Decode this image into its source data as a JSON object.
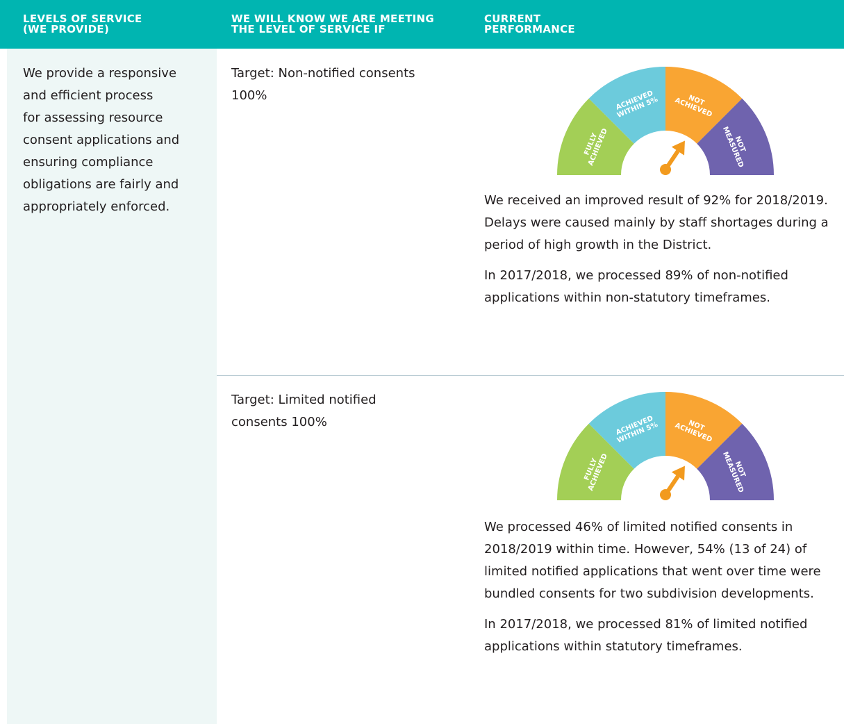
{
  "header": {
    "columns": [
      [
        "LEVELS OF SERVICE",
        "(WE PROVIDE)"
      ],
      [
        "WE WILL KNOW WE ARE MEETING",
        "THE LEVEL OF SERVICE IF"
      ],
      [
        "CURRENT",
        "PERFORMANCE"
      ]
    ]
  },
  "level_of_service": [
    "We provide a responsive",
    "and efficient process",
    "for assessing resource",
    "consent applications and",
    "ensuring compliance",
    "obligations are fairly and",
    "appropriately enforced."
  ],
  "gauge_labels": [
    [
      "FULLY",
      "ACHIEVED"
    ],
    [
      "ACHIEVED",
      "WITHIN 5%"
    ],
    [
      "NOT",
      "ACHIEVED"
    ],
    [
      "NOT",
      "MEASURED"
    ]
  ],
  "rows": [
    {
      "target": [
        "Target: Non-notified consents",
        "100%"
      ],
      "performance": [
        "We received an improved result of 92% for 2018/2019. Delays were caused mainly by staff shortages during a period of high growth in the District.",
        "In 2017/2018, we processed 89% of non-notified applications within non-statutory timeframes."
      ]
    },
    {
      "target": [
        "Target: Limited notified",
        "consents 100%"
      ],
      "performance": [
        "We processed 46% of limited notified consents in 2018/2019 within time. However, 54% (13 of 24) of limited notified applications that went over time were bundled consents for two subdivision developments.",
        "In 2017/2018, we processed 81% of limited notified applications within statutory timeframes."
      ]
    }
  ]
}
